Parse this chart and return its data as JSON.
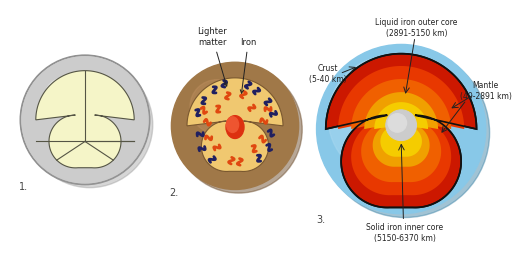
{
  "bg_color": "#ffffff",
  "label1": "1.",
  "label2": "2.",
  "label3": "3.",
  "lighter_matter": "Lighter\nmatter",
  "iron_label": "Iron",
  "crust_label": "Crust\n(5-40 km)",
  "mantle_label": "Mantle\n(40-2891 km)",
  "outer_core_label": "Liquid iron outer core\n(2891-5150 km)",
  "inner_core_label": "Solid iron inner core\n(5150-6370 km)",
  "gray_sphere_light": "#d8d8d8",
  "gray_sphere_dark": "#a8a8a8",
  "yellow_fill": "#f5f5c8",
  "yellow_fill2": "#eeeeb0",
  "brown_outer": "#a07848",
  "brown_dark": "#806030",
  "peach_inner": "#f0c870",
  "orange_iron": "#e05818",
  "dark_navy": "#1a1a50",
  "earth_blue_light": "#a8d8f0",
  "earth_blue": "#70b8e0",
  "earth_tan": "#c8b478",
  "mantle_dark_red": "#c01800",
  "mantle_red": "#dd2800",
  "mantle_orange": "#ee6000",
  "mantle_yellow": "#f0a000",
  "core_yellow": "#f5d020",
  "inner_core_gray": "#c0c0c0",
  "inner_core_light": "#d8d8d8",
  "line_color": "#555545",
  "arrow_color": "#222222"
}
